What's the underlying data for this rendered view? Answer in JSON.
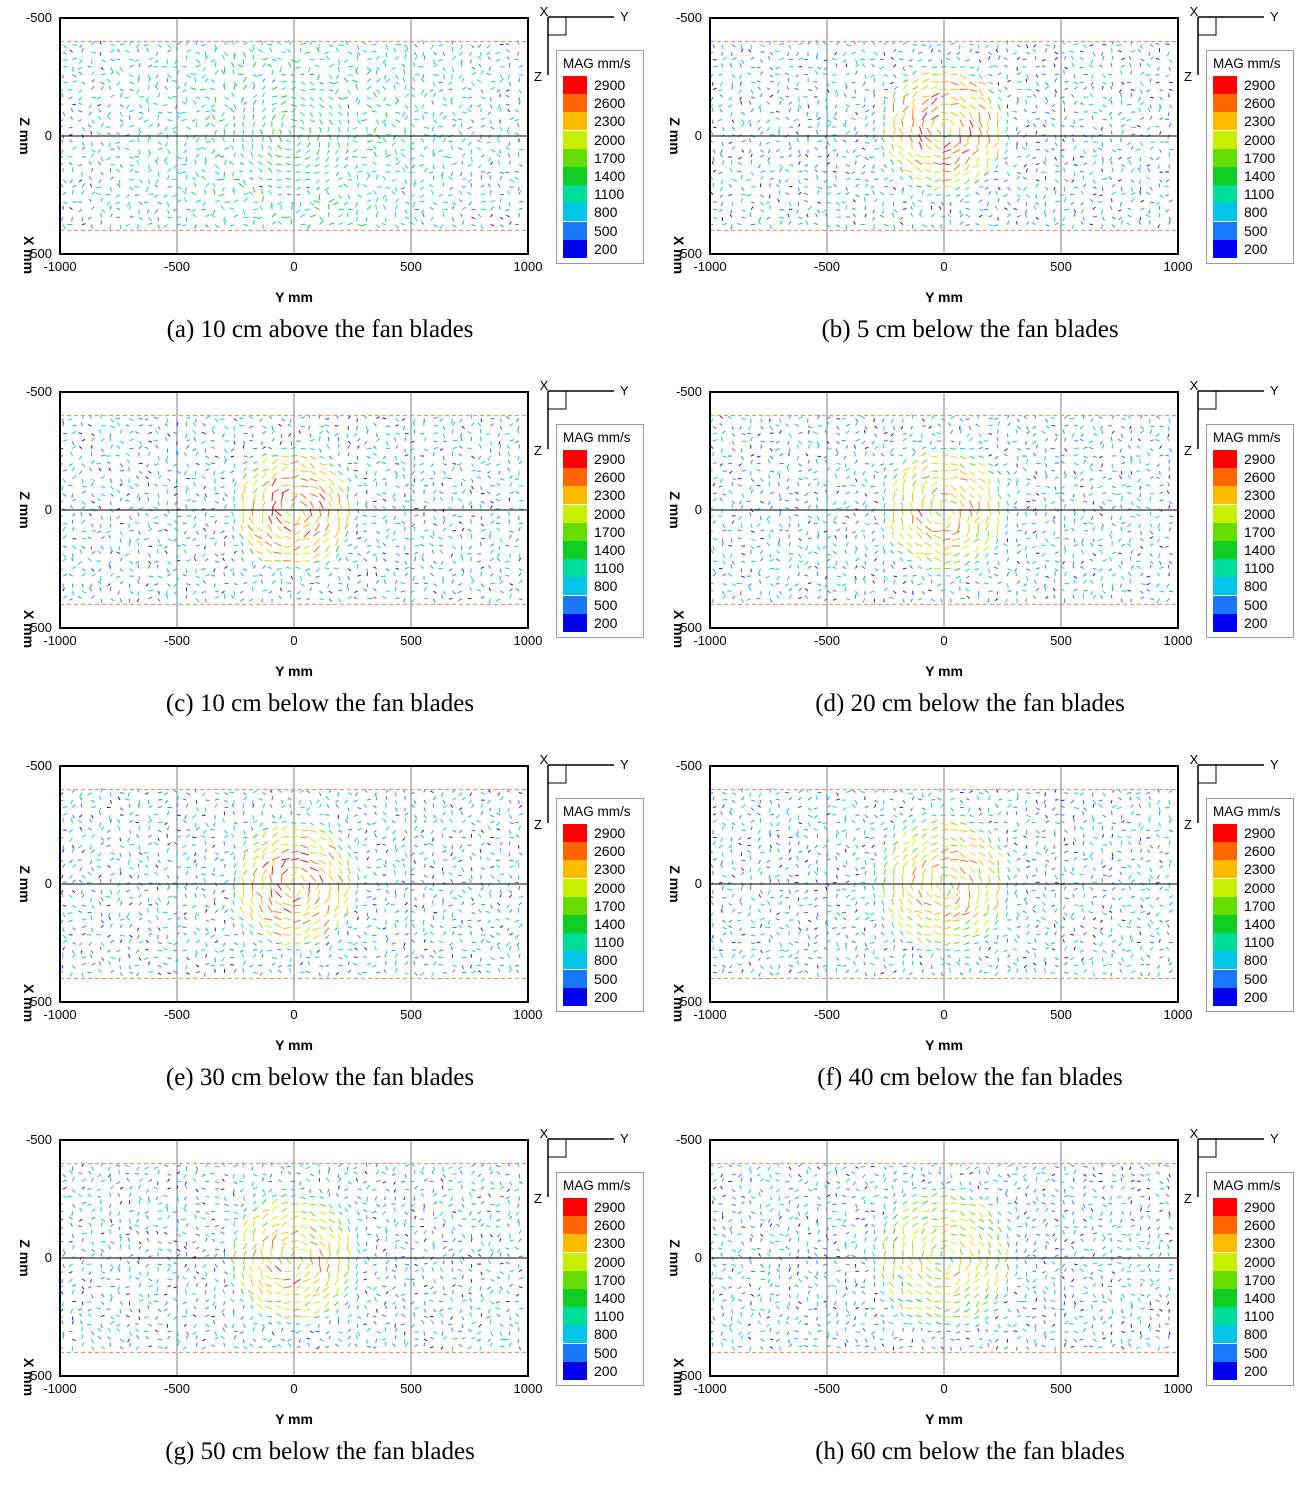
{
  "chart_data": [
    {
      "type": "vector-field",
      "caption": "(a) 10 cm above the fan blades",
      "xlabel": "Y mm",
      "ylabel": "Z mm",
      "ylabel2": "X mm",
      "xlim": [
        -1000,
        1000
      ],
      "ylim": [
        -500,
        500
      ],
      "xticks": [
        "-1000",
        "-500",
        "0",
        "500",
        "1000"
      ],
      "yticks": [
        "-500",
        "0",
        "500"
      ],
      "vortex": {
        "center": [
          0,
          -10
        ],
        "radius": 230,
        "peak_magnitude": 1500
      },
      "data_region_z": [
        -400,
        400
      ]
    },
    {
      "type": "vector-field",
      "caption": "(b) 5 cm below the fan blades",
      "xlabel": "Y mm",
      "ylabel": "Z mm",
      "ylabel2": "X mm",
      "xlim": [
        -1000,
        1000
      ],
      "ylim": [
        -500,
        500
      ],
      "xticks": [
        "-1000",
        "-500",
        "0",
        "500",
        "1000"
      ],
      "yticks": [
        "-500",
        "0",
        "500"
      ],
      "vortex": {
        "center": [
          0,
          -30
        ],
        "radius": 250,
        "peak_magnitude": 2900
      },
      "data_region_z": [
        -400,
        400
      ]
    },
    {
      "type": "vector-field",
      "caption": "(c) 10 cm below the fan blades",
      "xlabel": "Y mm",
      "ylabel": "Z mm",
      "ylabel2": "X mm",
      "xlim": [
        -1000,
        1000
      ],
      "ylim": [
        -500,
        500
      ],
      "xticks": [
        "-1000",
        "-500",
        "0",
        "500",
        "1000"
      ],
      "yticks": [
        "-500",
        "0",
        "500"
      ],
      "vortex": {
        "center": [
          0,
          0
        ],
        "radius": 240,
        "peak_magnitude": 2900
      },
      "data_region_z": [
        -400,
        400
      ]
    },
    {
      "type": "vector-field",
      "caption": "(d) 20 cm below the fan blades",
      "xlabel": "Y mm",
      "ylabel": "Z mm",
      "ylabel2": "X mm",
      "xlim": [
        -1000,
        1000
      ],
      "ylim": [
        -500,
        500
      ],
      "xticks": [
        "-1000",
        "-500",
        "0",
        "500",
        "1000"
      ],
      "yticks": [
        "-500",
        "0",
        "500"
      ],
      "vortex": {
        "center": [
          0,
          0
        ],
        "radius": 250,
        "peak_magnitude": 2600
      },
      "data_region_z": [
        -400,
        400
      ]
    },
    {
      "type": "vector-field",
      "caption": "(e) 30 cm below the fan blades",
      "xlabel": "Y mm",
      "ylabel": "Z mm",
      "ylabel2": "X mm",
      "xlim": [
        -1000,
        1000
      ],
      "ylim": [
        -500,
        500
      ],
      "xticks": [
        "-1000",
        "-500",
        "0",
        "500",
        "1000"
      ],
      "yticks": [
        "-500",
        "0",
        "500"
      ],
      "vortex": {
        "center": [
          0,
          0
        ],
        "radius": 250,
        "peak_magnitude": 2900
      },
      "data_region_z": [
        -400,
        400
      ]
    },
    {
      "type": "vector-field",
      "caption": "(f) 40 cm below the fan blades",
      "xlabel": "Y mm",
      "ylabel": "Z mm",
      "ylabel2": "X mm",
      "xlim": [
        -1000,
        1000
      ],
      "ylim": [
        -500,
        500
      ],
      "xticks": [
        "-1000",
        "-500",
        "0",
        "500",
        "1000"
      ],
      "yticks": [
        "-500",
        "0",
        "500"
      ],
      "vortex": {
        "center": [
          0,
          0
        ],
        "radius": 270,
        "peak_magnitude": 2600
      },
      "data_region_z": [
        -400,
        400
      ]
    },
    {
      "type": "vector-field",
      "caption": "(g) 50 cm below the fan blades",
      "xlabel": "Y mm",
      "ylabel": "Z mm",
      "ylabel2": "X mm",
      "xlim": [
        -1000,
        1000
      ],
      "ylim": [
        -500,
        500
      ],
      "xticks": [
        "-1000",
        "-500",
        "0",
        "500",
        "1000"
      ],
      "yticks": [
        "-500",
        "0",
        "500"
      ],
      "vortex": {
        "center": [
          0,
          0
        ],
        "radius": 260,
        "peak_magnitude": 2600
      },
      "data_region_z": [
        -400,
        400
      ]
    },
    {
      "type": "vector-field",
      "caption": "(h) 60 cm below the fan blades",
      "xlabel": "Y mm",
      "ylabel": "Z mm",
      "ylabel2": "X mm",
      "xlim": [
        -1000,
        1000
      ],
      "ylim": [
        -500,
        500
      ],
      "xticks": [
        "-1000",
        "-500",
        "0",
        "500",
        "1000"
      ],
      "yticks": [
        "-500",
        "0",
        "500"
      ],
      "vortex": {
        "center": [
          0,
          0
        ],
        "radius": 280,
        "peak_magnitude": 2300
      },
      "data_region_z": [
        -400,
        400
      ]
    }
  ],
  "legend": {
    "title": "MAG mm/s",
    "levels": [
      "2900",
      "2600",
      "2300",
      "2000",
      "1700",
      "1400",
      "1100",
      "800",
      "500",
      "200"
    ],
    "colors": [
      "#ff0000",
      "#ff6600",
      "#ffbb00",
      "#c8ee00",
      "#66dd00",
      "#11cc22",
      "#00dd99",
      "#00c4e8",
      "#1a78ff",
      "#0000ee"
    ]
  },
  "triad": {
    "horizontal": "Y",
    "vertical": "Z",
    "origin": "X"
  },
  "colors": {
    "axis": "#000000",
    "grid": "#7f7f7f",
    "center_line": "#000000",
    "boundary_dash": "#ff7f50"
  }
}
